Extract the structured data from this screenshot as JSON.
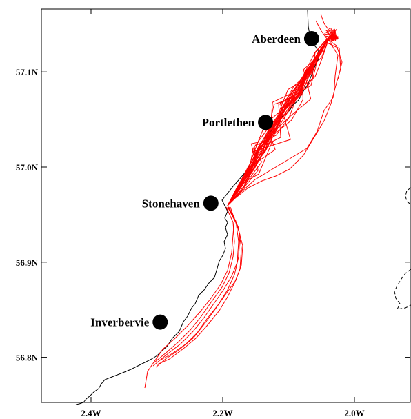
{
  "map": {
    "lon_range": [
      2.5,
      1.9
    ],
    "lat_range": [
      56.75,
      57.17
    ],
    "x_ticks": [
      {
        "lon": 2.4,
        "label": "2.4W"
      },
      {
        "lon": 2.2,
        "label": "2.2W"
      },
      {
        "lon": 2.0,
        "label": "2.0W"
      }
    ],
    "y_ticks": [
      {
        "lat": 57.1,
        "label": "57.1N"
      },
      {
        "lat": 57.0,
        "label": "57.0N"
      },
      {
        "lat": 56.9,
        "label": "56.9N"
      },
      {
        "lat": 56.8,
        "label": "56.8N"
      }
    ],
    "colors": {
      "coast": "#000000",
      "tracks": "#ff0000",
      "town_marker": "#000000",
      "dashed_boundary": "#000000"
    },
    "towns": [
      {
        "name": "Aberdeen",
        "lon": 2.065,
        "lat": 57.135,
        "label_side": "left"
      },
      {
        "name": "Portlethen",
        "lon": 2.135,
        "lat": 57.047,
        "label_side": "left"
      },
      {
        "name": "Stonehaven",
        "lon": 2.218,
        "lat": 56.962,
        "label_side": "left"
      },
      {
        "name": "Inverbervie",
        "lon": 2.295,
        "lat": 56.837,
        "label_side": "left"
      }
    ]
  }
}
